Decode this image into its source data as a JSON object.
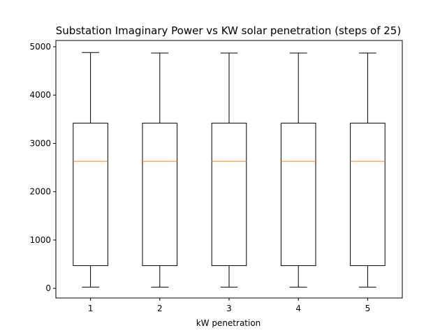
{
  "chart_data": {
    "type": "boxplot",
    "title": "Substation Imaginary Power vs KW solar penetration (steps of 25)",
    "xlabel": "kW penetration",
    "ylabel": "",
    "categories": [
      "1",
      "2",
      "3",
      "4",
      "5"
    ],
    "xlim": [
      0.5,
      5.5
    ],
    "ylim": [
      -200,
      5130
    ],
    "yticks": [
      0,
      1000,
      2000,
      3000,
      4000,
      5000
    ],
    "ytick_labels": [
      "0",
      "1000",
      "2000",
      "3000",
      "4000",
      "5000"
    ],
    "grid": false,
    "boxes": [
      {
        "label": "1",
        "whisker_low": 25,
        "q1": 470,
        "median": 2630,
        "q3": 3420,
        "whisker_high": 4880
      },
      {
        "label": "2",
        "whisker_low": 25,
        "q1": 470,
        "median": 2630,
        "q3": 3420,
        "whisker_high": 4870
      },
      {
        "label": "3",
        "whisker_low": 25,
        "q1": 470,
        "median": 2630,
        "q3": 3420,
        "whisker_high": 4870
      },
      {
        "label": "4",
        "whisker_low": 25,
        "q1": 470,
        "median": 2630,
        "q3": 3420,
        "whisker_high": 4870
      },
      {
        "label": "5",
        "whisker_low": 25,
        "q1": 470,
        "median": 2630,
        "q3": 3420,
        "whisker_high": 4870
      }
    ],
    "colors": {
      "box": "#000000",
      "median": "#ff7f0e",
      "axes": "#000000"
    }
  }
}
